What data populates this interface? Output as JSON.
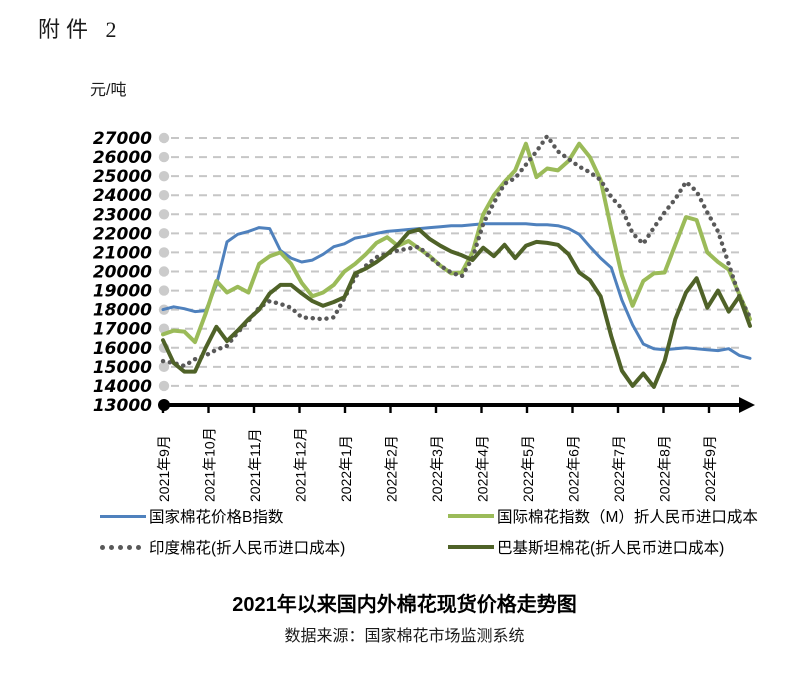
{
  "page": {
    "attachment_label": "附件 2"
  },
  "chart": {
    "unit_label": "元/吨",
    "title": "2021年以来国内外棉花现货价格走势图",
    "source": "数据来源：国家棉花市场监测系统"
  },
  "legend": {
    "items": [
      {
        "label": "国家棉花价格B指数",
        "marker": "line",
        "color": "#4F81BD"
      },
      {
        "label": "国际棉花指数（M）折人民币进口成本",
        "marker": "line",
        "color": "#9BBB59"
      },
      {
        "label": "印度棉花(折人民币进口成本)",
        "marker": "dots",
        "color": "#595959"
      },
      {
        "label": "巴基斯坦棉花(折人民币进口成本)",
        "marker": "line",
        "color": "#4F6228"
      }
    ]
  },
  "chart_data": {
    "type": "line",
    "title": "2021年以来国内外棉花现货价格走势图",
    "ylabel": "元/吨",
    "ylim": [
      13000,
      27000
    ],
    "y_ticks": [
      13000,
      14000,
      15000,
      16000,
      17000,
      18000,
      19000,
      20000,
      21000,
      22000,
      23000,
      24000,
      25000,
      26000,
      27000
    ],
    "x_tick_labels": [
      "2021年9月",
      "2021年10月",
      "2021年11月",
      "2021年12月",
      "2022年1月",
      "2022年2月",
      "2022年3月",
      "2022年4月",
      "2022年5月",
      "2022年6月",
      "2022年7月",
      "2022年8月",
      "2022年9月"
    ],
    "x_unit": "week",
    "grid": "horizontal-dashed",
    "legend_position": "bottom",
    "axis_color": "#000000",
    "grid_color": "#C6C6C6",
    "series": [
      {
        "name": "国家棉花价格B指数",
        "key": "china-b-index",
        "color": "#4F81BD",
        "style": "solid",
        "width": 3,
        "values": [
          18000,
          18150,
          18050,
          17900,
          17950,
          19300,
          21550,
          21950,
          22100,
          22300,
          22250,
          21100,
          20700,
          20500,
          20600,
          20900,
          21300,
          21450,
          21750,
          21850,
          22000,
          22100,
          22150,
          22200,
          22250,
          22300,
          22350,
          22400,
          22400,
          22450,
          22500,
          22500,
          22500,
          22500,
          22500,
          22450,
          22450,
          22400,
          22250,
          21950,
          21300,
          20700,
          20200,
          18500,
          17200,
          16200,
          15950,
          15900,
          15950,
          16000,
          15950,
          15900,
          15850,
          15950,
          15600,
          15450
        ]
      },
      {
        "name": "国际棉花指数（M）折人民币进口成本",
        "key": "cotlook-m-index",
        "color": "#9BBB59",
        "style": "solid",
        "width": 4,
        "values": [
          16700,
          16900,
          16850,
          16300,
          17800,
          19500,
          18900,
          19200,
          18900,
          20400,
          20800,
          21000,
          20400,
          19400,
          18700,
          18900,
          19300,
          20000,
          20400,
          20900,
          21500,
          21800,
          21350,
          21600,
          21200,
          20800,
          20300,
          19900,
          19950,
          21000,
          23000,
          24000,
          24700,
          25300,
          26700,
          24950,
          25400,
          25300,
          25800,
          26700,
          26000,
          24800,
          22200,
          19800,
          18200,
          19500,
          19900,
          19950,
          21400,
          22850,
          22700,
          21000,
          20500,
          20100,
          18800,
          17500
        ]
      },
      {
        "name": "印度棉花(折人民币进口成本)",
        "key": "india-cotton",
        "color": "#595959",
        "style": "dotted",
        "width": 4.4,
        "values": [
          15300,
          15200,
          15050,
          15400,
          15600,
          15900,
          16100,
          16800,
          17400,
          18100,
          18450,
          18300,
          18100,
          17600,
          17550,
          17500,
          17600,
          18600,
          19700,
          20300,
          20750,
          20950,
          21100,
          21200,
          21300,
          20750,
          20300,
          19950,
          19750,
          20700,
          22500,
          23600,
          24600,
          24900,
          25600,
          26300,
          27100,
          26300,
          25900,
          25500,
          25200,
          24800,
          23900,
          23300,
          22000,
          21450,
          22300,
          23100,
          23800,
          24700,
          24200,
          23100,
          22100,
          20400,
          18700,
          17600
        ]
      },
      {
        "name": "巴基斯坦棉花(折人民币进口成本)",
        "key": "pakistan-cotton",
        "color": "#4F6228",
        "style": "solid",
        "width": 4,
        "values": [
          16400,
          15200,
          14750,
          14750,
          16000,
          17100,
          16350,
          16900,
          17500,
          18000,
          18850,
          19300,
          19300,
          18850,
          18450,
          18200,
          18400,
          18650,
          19900,
          20150,
          20500,
          20900,
          21400,
          22050,
          22200,
          21700,
          21350,
          21050,
          20850,
          20600,
          21250,
          20800,
          21400,
          20700,
          21350,
          21550,
          21500,
          21400,
          20900,
          19950,
          19550,
          18700,
          16600,
          14800,
          14000,
          14650,
          13950,
          15300,
          17500,
          18900,
          19650,
          18100,
          19000,
          17900,
          18700,
          17150
        ]
      }
    ]
  }
}
